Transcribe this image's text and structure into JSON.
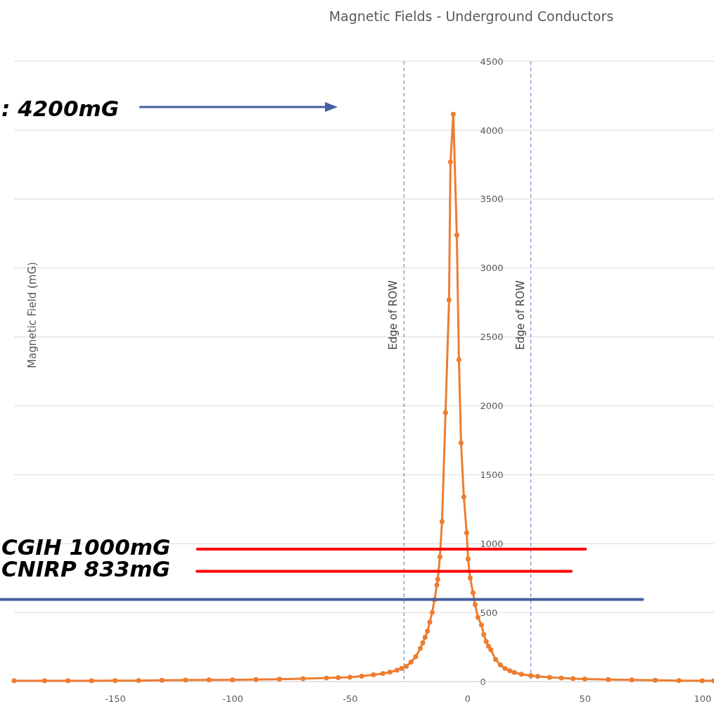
{
  "chart_data": {
    "type": "line",
    "title": "Magnetic Fields - Underground Conductors",
    "ylabel": "Magnetic Field (mG)",
    "x": [
      -193,
      -180,
      -170,
      -160,
      -150,
      -140,
      -130,
      -120,
      -110,
      -100,
      -90,
      -80,
      -70,
      -60,
      -55,
      -50,
      -45,
      -40,
      -36,
      -33,
      -30,
      -28,
      -26,
      -24,
      -22,
      -20,
      -19,
      -18,
      -17,
      -16,
      -15,
      -14,
      -13,
      -12.6,
      -11.7,
      -10.8,
      -9.3,
      -7.8,
      -7.2,
      -6,
      -4.5,
      -3.6,
      -2.7,
      -1.5,
      -0.3,
      0.3,
      1.2,
      2.4,
      3.3,
      4.5,
      6,
      7,
      8,
      9,
      10,
      12,
      14,
      16,
      18,
      20,
      23,
      27,
      30,
      35,
      40,
      45,
      50,
      60,
      70,
      80,
      90,
      100,
      105
    ],
    "values": [
      5,
      5,
      5,
      5,
      6,
      7,
      9,
      10,
      11,
      12,
      14,
      17,
      20,
      25,
      28,
      31,
      38,
      48,
      58,
      68,
      82,
      95,
      110,
      140,
      180,
      240,
      280,
      320,
      365,
      430,
      500,
      592,
      700,
      741,
      904,
      1159,
      1950,
      2768,
      3769,
      4116,
      3238,
      2334,
      1731,
      1338,
      1078,
      889,
      751,
      644,
      557,
      465,
      410,
      340,
      290,
      255,
      230,
      160,
      120,
      95,
      78,
      65,
      52,
      42,
      37,
      30,
      25,
      21,
      18,
      14,
      11,
      9,
      7,
      5,
      5
    ],
    "color": "#ed7d31",
    "marker": "circle",
    "line_style": "solid",
    "xlim": [
      -193,
      105
    ],
    "ylim": [
      0,
      4500
    ],
    "xticks": [
      -150,
      -100,
      -50,
      0,
      50,
      100
    ],
    "yticks": [
      0,
      500,
      1000,
      1500,
      2000,
      2500,
      3000,
      3500,
      4000,
      4500
    ],
    "grid": "y",
    "ref_lines": [
      {
        "axis": "x",
        "value": -27,
        "label": "Edge of ROW",
        "color": "#6f8fbf",
        "line_style": "dashed"
      },
      {
        "axis": "x",
        "value": 27,
        "label": "Edge of ROW",
        "color": "#6f8fbf",
        "line_style": "dashed"
      },
      {
        "axis": "y",
        "value": 960,
        "label": "CGIH 1000mG",
        "color": "#ff0000",
        "line_style": "solid"
      },
      {
        "axis": "y",
        "value": 800,
        "label": "CNIRP 833mG",
        "color": "#ff0000",
        "line_style": "solid"
      },
      {
        "axis": "y",
        "value": 595,
        "color": "#4560a0",
        "line_style": "solid"
      }
    ],
    "annotations": [
      ": 4200mG"
    ]
  }
}
